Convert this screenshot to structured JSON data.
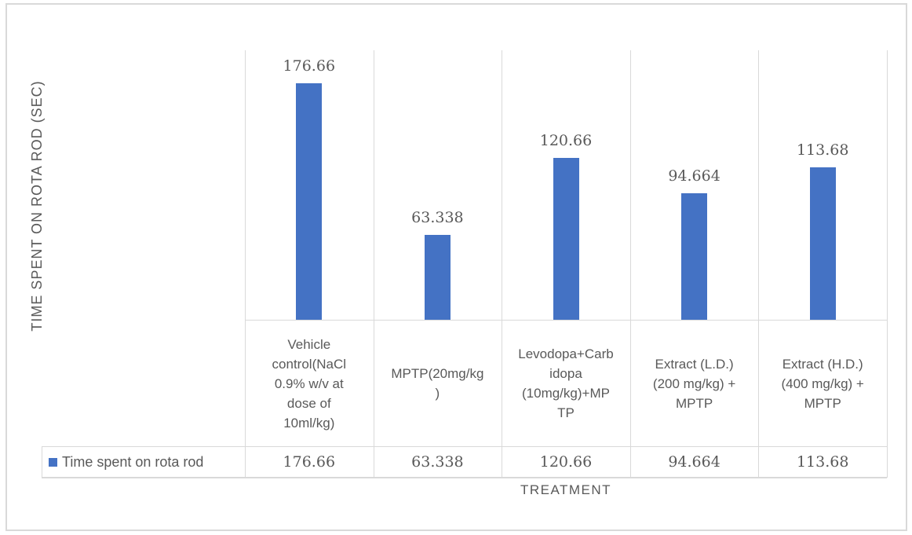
{
  "figure": {
    "y_axis_title": "TIME SPENT ON ROTA ROD (SEC)",
    "x_axis_title": "TREATMENT"
  },
  "legend": {
    "series_label": "Time spent on rota rod",
    "marker_color": "#4472C4"
  },
  "chart_data": {
    "type": "bar",
    "title": "",
    "xlabel": "TREATMENT",
    "ylabel": "TIME SPENT ON ROTA ROD (SEC)",
    "categories": [
      "Vehicle control(NaCl 0.9% w/v at dose of 10ml/kg)",
      "MPTP(20mg/kg)",
      "Levodopa+Carbidopa (10mg/kg)+MPTP",
      "Extract (L.D.) (200 mg/kg) + MPTP",
      "Extract (H.D.) (400 mg/kg) + MPTP"
    ],
    "category_display_lines": [
      [
        "Vehicle",
        "control(NaCl",
        "0.9% w/v at",
        "dose of",
        "10ml/kg)"
      ],
      [
        "MPTP(20mg/kg",
        ")"
      ],
      [
        "Levodopa+Carb",
        "idopa",
        "(10mg/kg)+MP",
        "TP"
      ],
      [
        "Extract (L.D.)",
        "(200 mg/kg) +",
        "MPTP"
      ],
      [
        "Extract (H.D.)",
        "(400 mg/kg) +",
        "MPTP"
      ]
    ],
    "series": [
      {
        "name": "Time spent on rota rod",
        "values": [
          176.66,
          63.338,
          120.66,
          94.664,
          113.68
        ]
      }
    ],
    "value_labels": [
      "176.66",
      "63.338",
      "120.66",
      "94.664",
      "113.68"
    ],
    "data_table": {
      "row_header": "Time spent on rota rod",
      "row_values": [
        "176.66",
        "63.338",
        "120.66",
        "94.664",
        "113.68"
      ]
    },
    "ylim": [
      0,
      200
    ],
    "axis_ticks_visible": false,
    "grid": "vertical-category-dividers",
    "legend_position": "bottom-table-row",
    "bar_color": "#4472C4",
    "label_color": "#595959",
    "border_color": "#D9D9D9"
  }
}
